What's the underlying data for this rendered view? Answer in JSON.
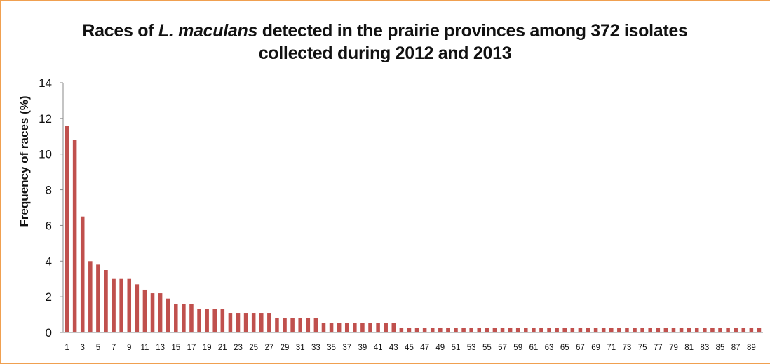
{
  "chart_data": {
    "type": "bar",
    "title": {
      "line1_prefix": "Races of ",
      "line1_italic": "L. maculans",
      "line1_suffix": " detected in the prairie provinces among 372 isolates",
      "line2": "collected  during 2012 and 2013"
    },
    "xlabel": "",
    "ylabel": "Frequency of races (%)",
    "ylim": [
      0,
      14
    ],
    "yticks": [
      0,
      2,
      4,
      6,
      8,
      10,
      12,
      14
    ],
    "grid": false,
    "legend": "none",
    "bar_color": "#c0504d",
    "categories": [
      1,
      2,
      3,
      4,
      5,
      6,
      7,
      8,
      9,
      10,
      11,
      12,
      13,
      14,
      15,
      16,
      17,
      18,
      19,
      20,
      21,
      22,
      23,
      24,
      25,
      26,
      27,
      28,
      29,
      30,
      31,
      32,
      33,
      34,
      35,
      36,
      37,
      38,
      39,
      40,
      41,
      42,
      43,
      44,
      45,
      46,
      47,
      48,
      49,
      50,
      51,
      52,
      53,
      54,
      55,
      56,
      57,
      58,
      59,
      60,
      61,
      62,
      63,
      64,
      65,
      66,
      67,
      68,
      69,
      70,
      71,
      72,
      73,
      74,
      75,
      76,
      77,
      78,
      79,
      80,
      81,
      82,
      83,
      84,
      85,
      86,
      87,
      88,
      89,
      90
    ],
    "xtick_labels": [
      "1",
      "3",
      "5",
      "7",
      "9",
      "11",
      "13",
      "15",
      "17",
      "19",
      "21",
      "23",
      "25",
      "27",
      "29",
      "31",
      "33",
      "35",
      "37",
      "39",
      "41",
      "43",
      "45",
      "47",
      "49",
      "51",
      "53",
      "55",
      "57",
      "59",
      "61",
      "63",
      "65",
      "67",
      "69",
      "71",
      "73",
      "75",
      "77",
      "79",
      "81",
      "83",
      "85",
      "87",
      "89"
    ],
    "values": [
      11.6,
      10.8,
      6.5,
      4.0,
      3.8,
      3.5,
      3.0,
      3.0,
      3.0,
      2.7,
      2.4,
      2.2,
      2.2,
      1.9,
      1.6,
      1.6,
      1.6,
      1.3,
      1.3,
      1.3,
      1.3,
      1.1,
      1.1,
      1.1,
      1.1,
      1.1,
      1.1,
      0.8,
      0.8,
      0.8,
      0.8,
      0.8,
      0.8,
      0.54,
      0.54,
      0.54,
      0.54,
      0.54,
      0.54,
      0.54,
      0.54,
      0.54,
      0.54,
      0.27,
      0.27,
      0.27,
      0.27,
      0.27,
      0.27,
      0.27,
      0.27,
      0.27,
      0.27,
      0.27,
      0.27,
      0.27,
      0.27,
      0.27,
      0.27,
      0.27,
      0.27,
      0.27,
      0.27,
      0.27,
      0.27,
      0.27,
      0.27,
      0.27,
      0.27,
      0.27,
      0.27,
      0.27,
      0.27,
      0.27,
      0.27,
      0.27,
      0.27,
      0.27,
      0.27,
      0.27,
      0.27,
      0.27,
      0.27,
      0.27,
      0.27,
      0.27,
      0.27,
      0.27,
      0.27,
      0.27
    ]
  }
}
